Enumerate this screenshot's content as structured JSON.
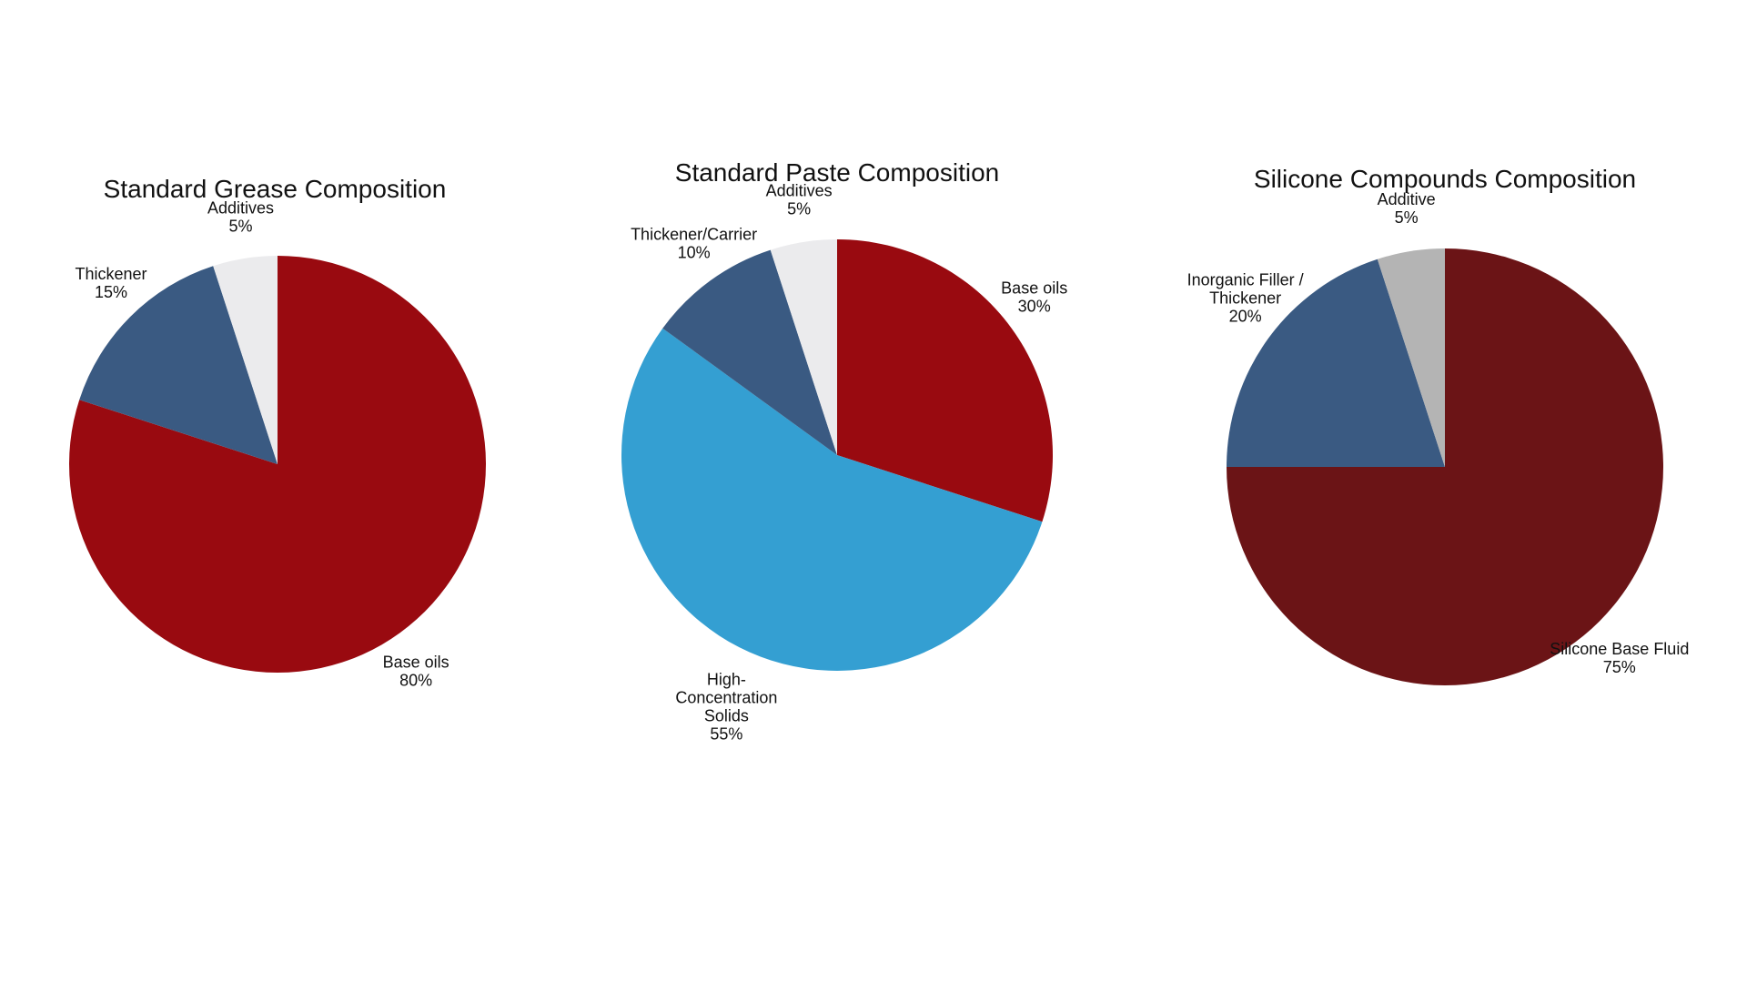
{
  "chart_data": [
    {
      "type": "pie",
      "title": "Standard Grease Composition",
      "start_angle_deg": 0,
      "direction": "clockwise",
      "slices": [
        {
          "label_lines": [
            "Base oils"
          ],
          "value": 80,
          "pct_label": "80%",
          "color": "#990a10"
        },
        {
          "label_lines": [
            "Thickener"
          ],
          "value": 15,
          "pct_label": "15%",
          "color": "#3a5a82"
        },
        {
          "label_lines": [
            "Additives"
          ],
          "value": 5,
          "pct_label": "5%",
          "color": "#ebebed"
        }
      ]
    },
    {
      "type": "pie",
      "title": "Standard Paste Composition",
      "start_angle_deg": 0,
      "direction": "clockwise",
      "slices": [
        {
          "label_lines": [
            "Base oils"
          ],
          "value": 30,
          "pct_label": "30%",
          "color": "#990a10"
        },
        {
          "label_lines": [
            "High-",
            "Concentration",
            "Solids"
          ],
          "value": 55,
          "pct_label": "55%",
          "color": "#349fd2"
        },
        {
          "label_lines": [
            "Thickener/Carrier"
          ],
          "value": 10,
          "pct_label": "10%",
          "color": "#3a5a82"
        },
        {
          "label_lines": [
            "Additives"
          ],
          "value": 5,
          "pct_label": "5%",
          "color": "#ebebed"
        }
      ]
    },
    {
      "type": "pie",
      "title": "Silicone Compounds Composition",
      "start_angle_deg": 0,
      "direction": "clockwise",
      "slices": [
        {
          "label_lines": [
            "Silicone Base Fluid"
          ],
          "value": 75,
          "pct_label": "75%",
          "color": "#6b1416"
        },
        {
          "label_lines": [
            "Inorganic Filler /",
            "Thickener"
          ],
          "value": 20,
          "pct_label": "20%",
          "color": "#3a5a82"
        },
        {
          "label_lines": [
            "Additive"
          ],
          "value": 5,
          "pct_label": "5%",
          "color": "#b4b4b4"
        }
      ]
    }
  ]
}
